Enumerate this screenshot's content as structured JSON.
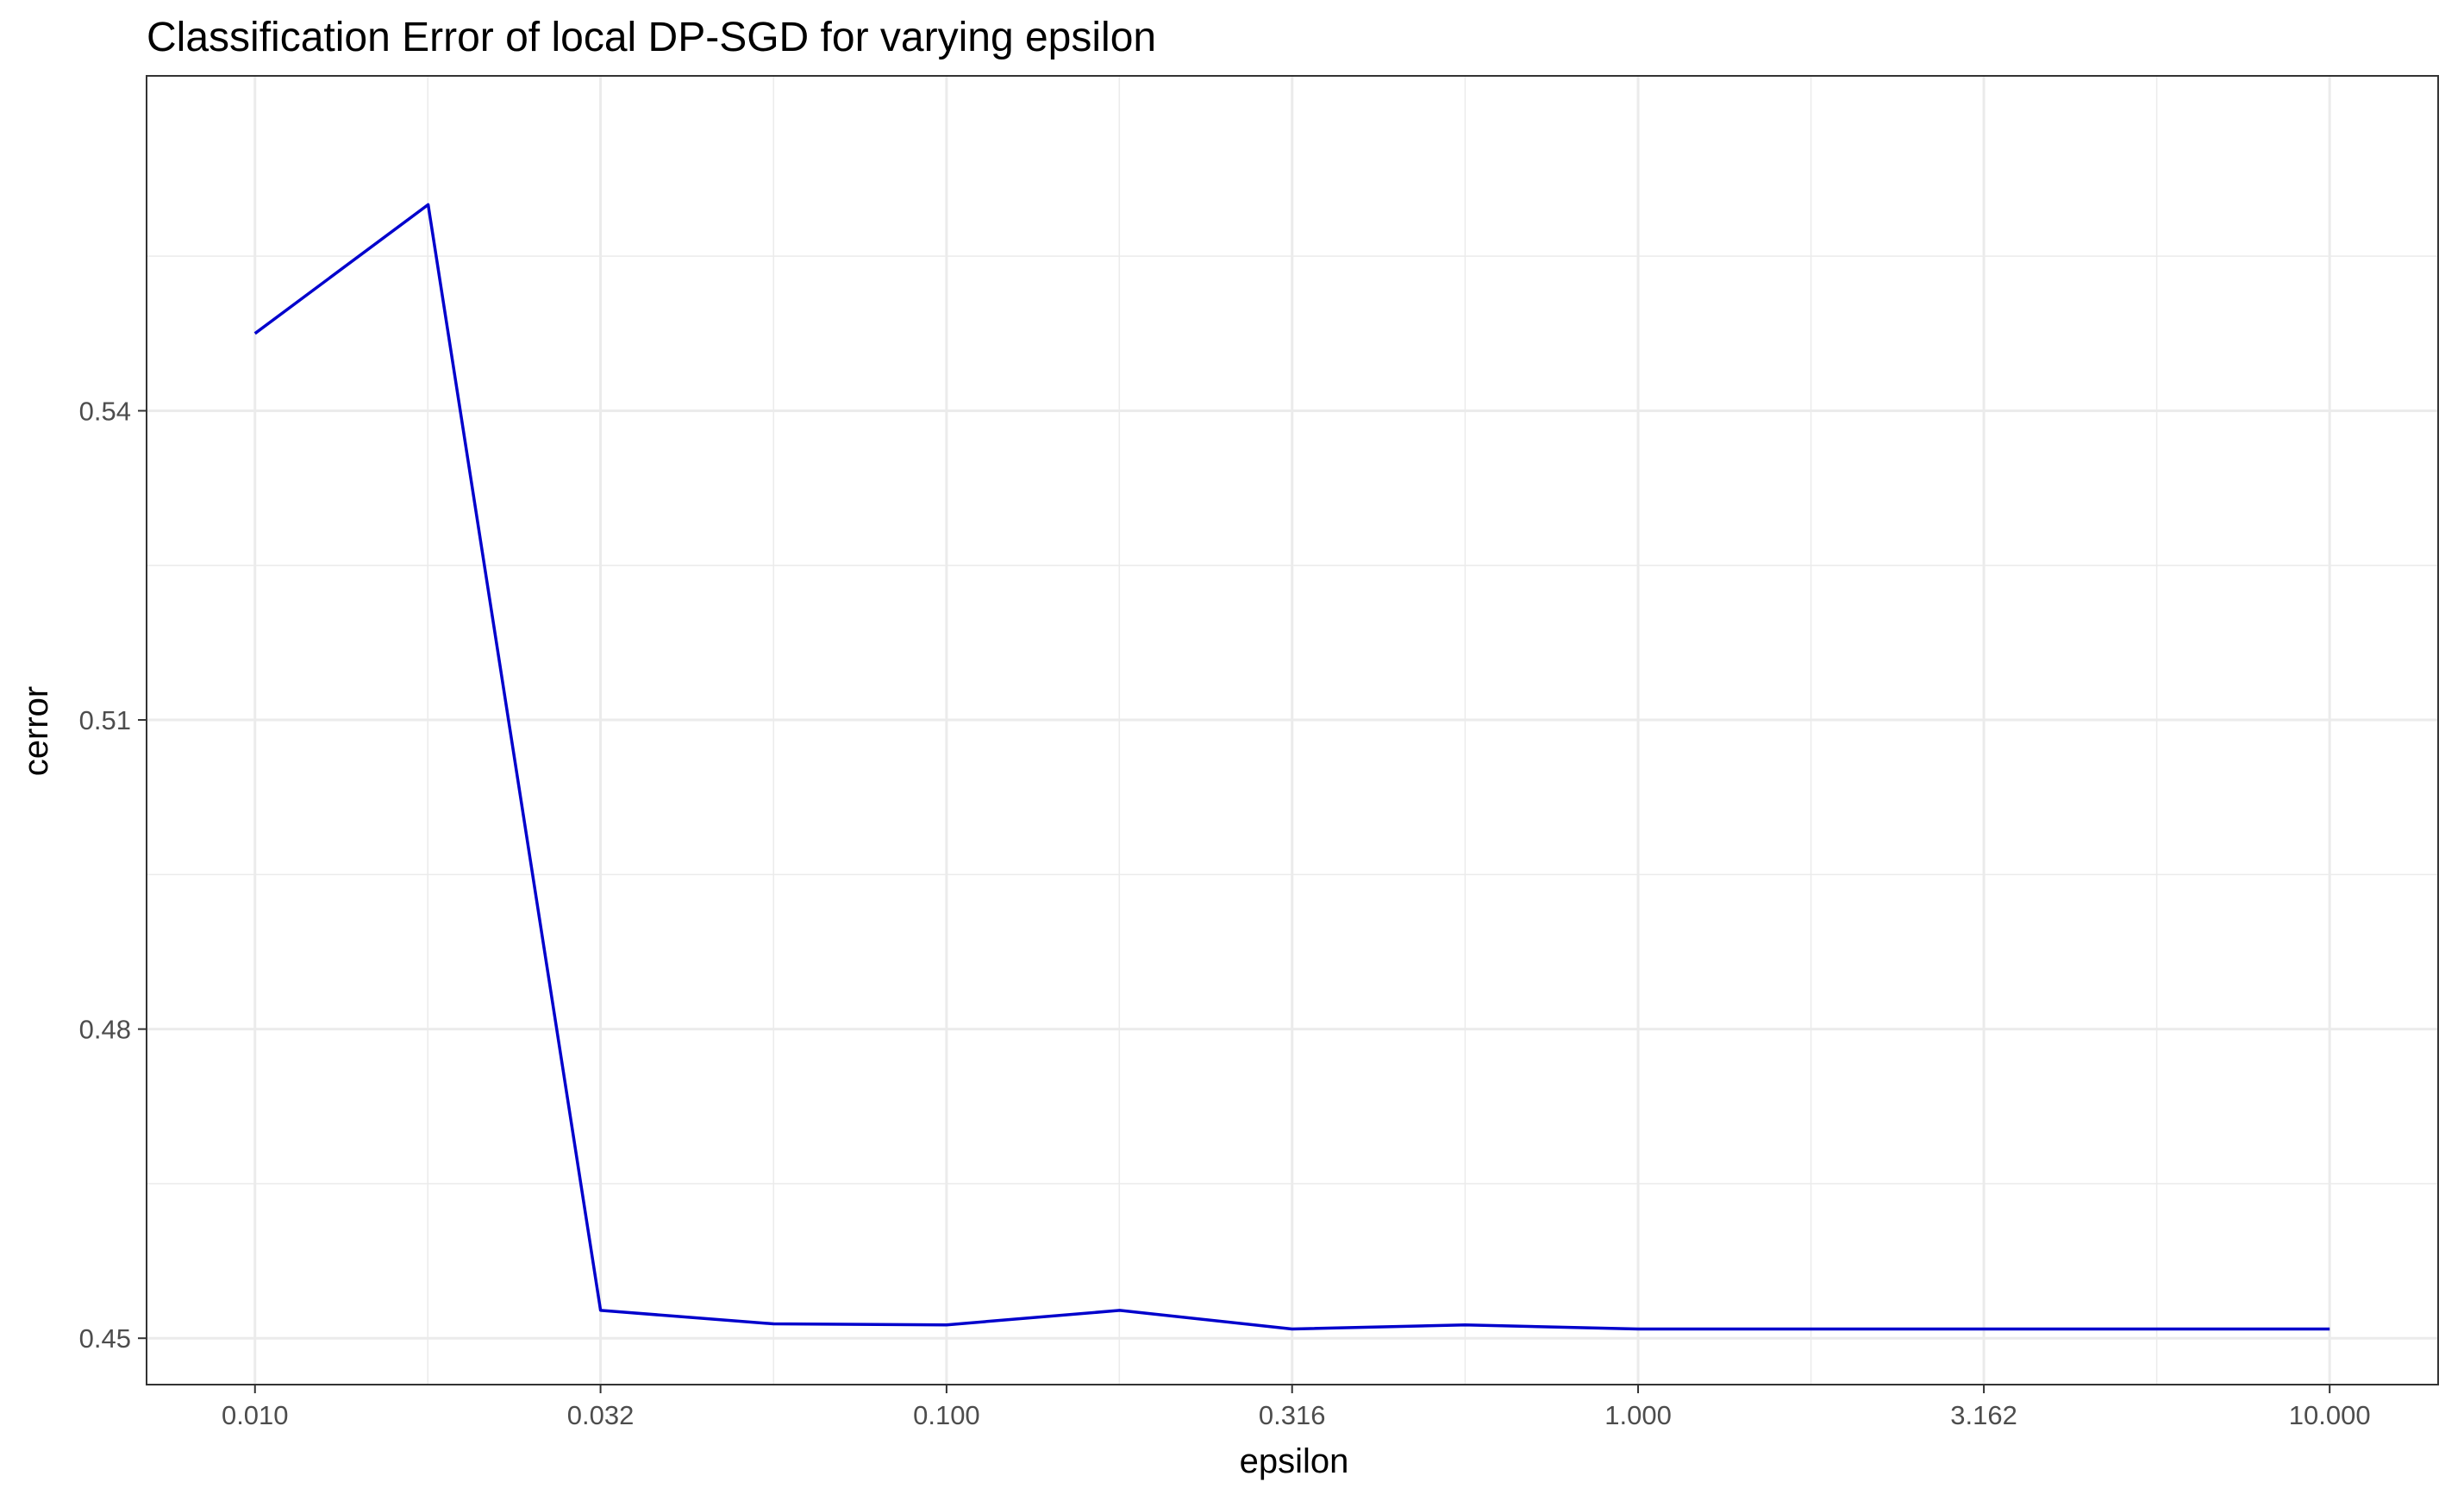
{
  "chart_data": {
    "type": "line",
    "title": "Classification Error of local DP-SGD for varying epsilon",
    "xlabel": "epsilon",
    "ylabel": "cerror",
    "x_scale": "log10",
    "x_ticks": [
      0.01,
      0.0316,
      0.1,
      0.316,
      1.0,
      3.162,
      10.0
    ],
    "x_tick_labels": [
      "0.010",
      "0.032",
      "0.100",
      "0.316",
      "1.000",
      "3.162",
      "10.000"
    ],
    "y_ticks": [
      0.45,
      0.48,
      0.51,
      0.54
    ],
    "y_tick_labels": [
      "0.45",
      "0.48",
      "0.51",
      "0.54"
    ],
    "xlim": [
      0.00697,
      14.35
    ],
    "ylim": [
      0.4455,
      0.5725
    ],
    "grid": true,
    "series": [
      {
        "color": "#0000cc",
        "x": [
          0.01,
          0.0178,
          0.0316,
          0.0562,
          0.1,
          0.178,
          0.316,
          0.562,
          1.0,
          1.78,
          3.16,
          5.62,
          10.0
        ],
        "y": [
          0.5475,
          0.56,
          0.4527,
          0.4514,
          0.4513,
          0.4527,
          0.4509,
          0.4513,
          0.4509,
          0.4509,
          0.4509,
          0.4509,
          0.4509
        ]
      }
    ]
  }
}
